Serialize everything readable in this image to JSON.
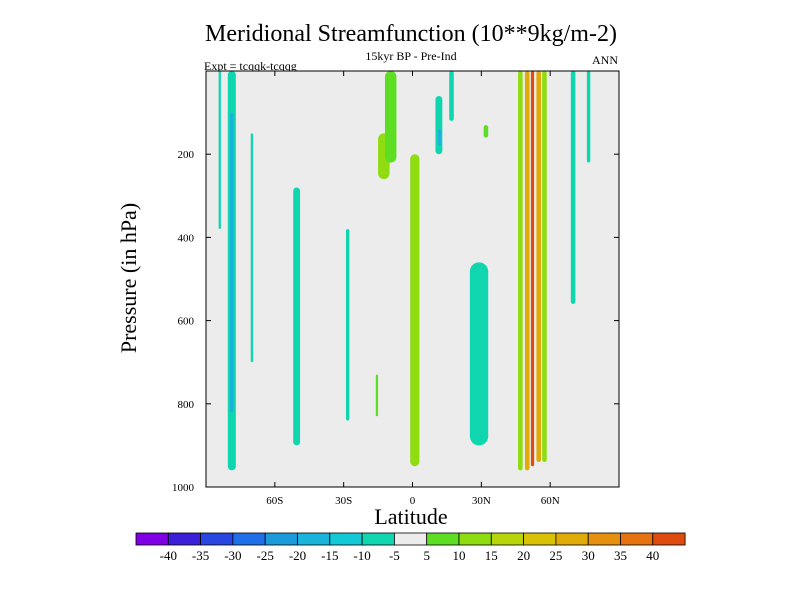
{
  "chart_data": {
    "type": "heatmap",
    "title": "Meridional Streamfunction (10**9kg/m-2)",
    "subtitle": "15kyr BP - Pre-Ind",
    "left_label": "Expt = tcqqk-tcqqg",
    "right_label": "ANN",
    "xlabel": "Latitude",
    "ylabel": "Pressure (in hPa)",
    "xlim": [
      -90,
      90
    ],
    "ylim": [
      1000,
      0
    ],
    "x_ticks": [
      {
        "value": -60,
        "label": "60S"
      },
      {
        "value": -30,
        "label": "30S"
      },
      {
        "value": 0,
        "label": "0"
      },
      {
        "value": 30,
        "label": "30N"
      },
      {
        "value": 60,
        "label": "60N"
      }
    ],
    "y_ticks": [
      {
        "value": 200,
        "label": "200"
      },
      {
        "value": 400,
        "label": "400"
      },
      {
        "value": 600,
        "label": "600"
      },
      {
        "value": 800,
        "label": "800"
      },
      {
        "value": 1000,
        "label": "1000"
      }
    ],
    "colorbar": {
      "labels": [
        "-40",
        "-35",
        "-30",
        "-25",
        "-20",
        "-15",
        "-10",
        "-5",
        "5",
        "10",
        "15",
        "20",
        "25",
        "30",
        "35",
        "40"
      ],
      "colors": [
        "#8000e6",
        "#3b1fd9",
        "#2a46e0",
        "#1f6fe8",
        "#1a9ad9",
        "#1ab3d9",
        "#14c9d6",
        "#10d6b0",
        "#ececec",
        "#5ede22",
        "#8fdc10",
        "#b8d40a",
        "#d9c205",
        "#e0aa08",
        "#e69010",
        "#e67210",
        "#e04c10"
      ]
    },
    "fields": [
      {
        "lat": [
          -80.5,
          -77
        ],
        "p": [
          0,
          960
        ],
        "value": -10
      },
      {
        "lat": [
          -79.5,
          -78
        ],
        "p": [
          100,
          820
        ],
        "value": -20
      },
      {
        "lat": [
          -84.5,
          -83.5
        ],
        "p": [
          0,
          380
        ],
        "value": -10
      },
      {
        "lat": [
          -70.5,
          -69.5
        ],
        "p": [
          150,
          700
        ],
        "value": -10
      },
      {
        "lat": [
          -52,
          -49
        ],
        "p": [
          280,
          900
        ],
        "value": -10
      },
      {
        "lat": [
          -29,
          -27.5
        ],
        "p": [
          380,
          840
        ],
        "value": -10
      },
      {
        "lat": [
          -15,
          -10
        ],
        "p": [
          150,
          260
        ],
        "value": 10
      },
      {
        "lat": [
          -12,
          -7
        ],
        "p": [
          0,
          220
        ],
        "value": 5
      },
      {
        "lat": [
          -1,
          3
        ],
        "p": [
          200,
          950
        ],
        "value": 10
      },
      {
        "lat": [
          -16,
          -15
        ],
        "p": [
          730,
          830
        ],
        "value": 5
      },
      {
        "lat": [
          10,
          13
        ],
        "p": [
          60,
          200
        ],
        "value": -10
      },
      {
        "lat": [
          11,
          12.5
        ],
        "p": [
          140,
          180
        ],
        "value": -20
      },
      {
        "lat": [
          16,
          18
        ],
        "p": [
          0,
          120
        ],
        "value": -10
      },
      {
        "lat": [
          31,
          33
        ],
        "p": [
          130,
          160
        ],
        "value": 5
      },
      {
        "lat": [
          25,
          33
        ],
        "p": [
          460,
          900
        ],
        "value": -10
      },
      {
        "lat": [
          46,
          48
        ],
        "p": [
          0,
          960
        ],
        "value": 10
      },
      {
        "lat": [
          49,
          51
        ],
        "p": [
          0,
          960
        ],
        "value": 25
      },
      {
        "lat": [
          51.6,
          53
        ],
        "p": [
          0,
          950
        ],
        "value": 40
      },
      {
        "lat": [
          54,
          56
        ],
        "p": [
          0,
          940
        ],
        "value": 25
      },
      {
        "lat": [
          56.5,
          58.5
        ],
        "p": [
          0,
          940
        ],
        "value": 10
      },
      {
        "lat": [
          69,
          71
        ],
        "p": [
          0,
          560
        ],
        "value": -10
      },
      {
        "lat": [
          76,
          77.5
        ],
        "p": [
          0,
          220
        ],
        "value": -10
      }
    ]
  }
}
